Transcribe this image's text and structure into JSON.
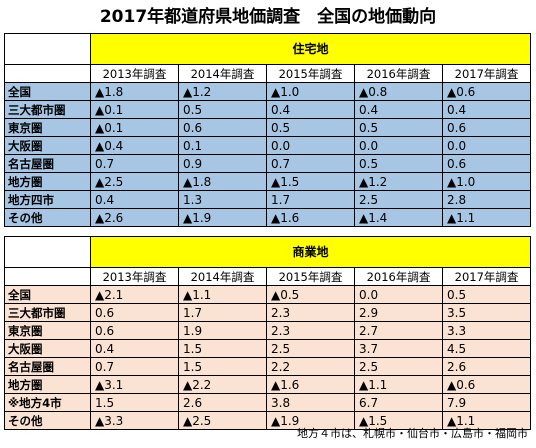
{
  "title": "2017年都道府県地価調査　全国の地価動向",
  "years": [
    "2013年調査",
    "2014年調査",
    "2015年調査",
    "2016年調査",
    "2017年調査"
  ],
  "residential": {
    "heading": "住宅地",
    "rows": [
      {
        "label": "全国",
        "values": [
          "▲1.8",
          "▲1.2",
          "▲1.0",
          "▲0.8",
          "▲0.6"
        ]
      },
      {
        "label": "三大都市圏",
        "values": [
          "▲0.1",
          "0.5",
          "0.4",
          "0.4",
          "0.4"
        ]
      },
      {
        "label": "東京圏",
        "values": [
          "▲0.1",
          "0.6",
          "0.5",
          "0.5",
          "0.6"
        ]
      },
      {
        "label": "大阪圏",
        "values": [
          "▲0.4",
          "0.1",
          "0.0",
          "0.0",
          "0.0"
        ]
      },
      {
        "label": "名古屋圏",
        "values": [
          "0.7",
          "0.9",
          "0.7",
          "0.5",
          "0.6"
        ]
      },
      {
        "label": "地方圏",
        "values": [
          "▲2.5",
          "▲1.8",
          "▲1.5",
          "▲1.2",
          "▲1.0"
        ]
      },
      {
        "label": "地方四市",
        "values": [
          "0.4",
          "1.3",
          "1.7",
          "2.5",
          "2.8"
        ]
      },
      {
        "label": "その他",
        "values": [
          "▲2.6",
          "▲1.9",
          "▲1.6",
          "▲1.4",
          "▲1.1"
        ]
      }
    ]
  },
  "commercial": {
    "heading": "商業地",
    "rows": [
      {
        "label": "全国",
        "values": [
          "▲2.1",
          "▲1.1",
          "▲0.5",
          "0.0",
          "0.5"
        ]
      },
      {
        "label": "三大都市圏",
        "values": [
          "0.6",
          "1.7",
          "2.3",
          "2.9",
          "3.5"
        ]
      },
      {
        "label": "東京圏",
        "values": [
          "0.6",
          "1.9",
          "2.3",
          "2.7",
          "3.3"
        ]
      },
      {
        "label": "大阪圏",
        "values": [
          "0.4",
          "1.5",
          "2.5",
          "3.7",
          "4.5"
        ]
      },
      {
        "label": "名古屋圏",
        "values": [
          "0.7",
          "1.5",
          "2.2",
          "2.5",
          "2.6"
        ]
      },
      {
        "label": "地方圏",
        "values": [
          "▲3.1",
          "▲2.2",
          "▲1.6",
          "▲1.1",
          "▲0.6"
        ]
      },
      {
        "label": "※地方4市",
        "values": [
          "1.5",
          "2.6",
          "3.8",
          "6.7",
          "7.9"
        ]
      },
      {
        "label": "その他",
        "values": [
          "▲3.3",
          "▲2.5",
          "▲1.9",
          "▲1.5",
          "▲1.1"
        ]
      }
    ]
  },
  "note": "地方４市は、札幌市・仙台市・広島市・福岡市"
}
